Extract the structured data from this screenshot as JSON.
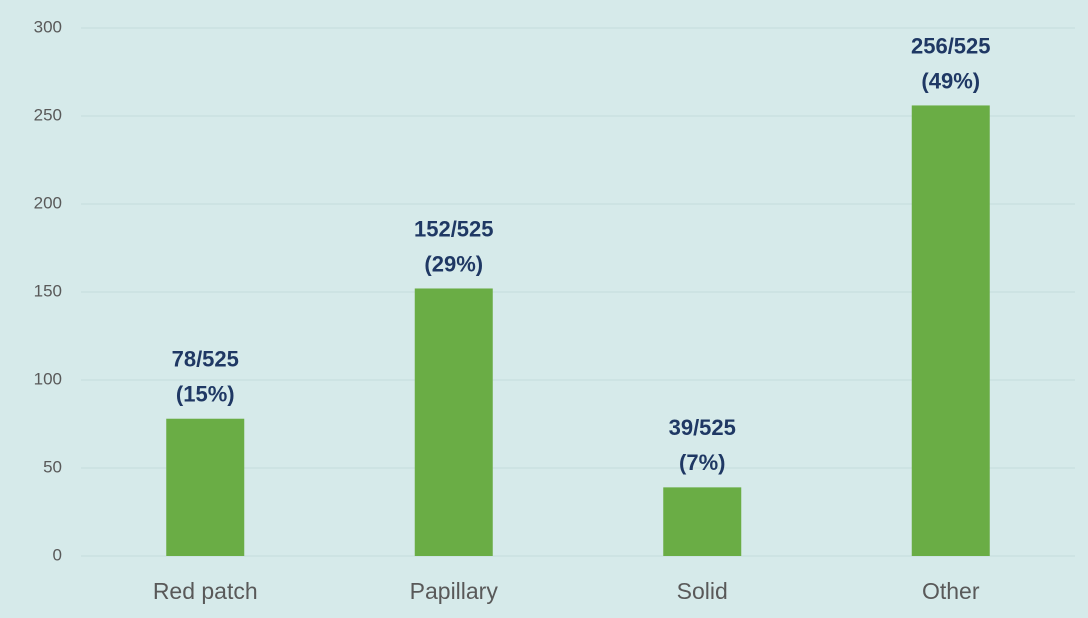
{
  "chart_data": {
    "type": "bar",
    "categories": [
      "Red patch",
      "Papillary",
      "Solid",
      "Other"
    ],
    "values": [
      78,
      152,
      39,
      256
    ],
    "value_labels": [
      [
        "78/525",
        "(15%)"
      ],
      [
        "152/525",
        "(29%)"
      ],
      [
        "39/525",
        "(7%)"
      ],
      [
        "256/525",
        "(49%)"
      ]
    ],
    "color": "#6aad45",
    "ylim": [
      0,
      300
    ],
    "yticks": [
      0,
      50,
      100,
      150,
      200,
      250,
      300
    ],
    "grid": true
  }
}
